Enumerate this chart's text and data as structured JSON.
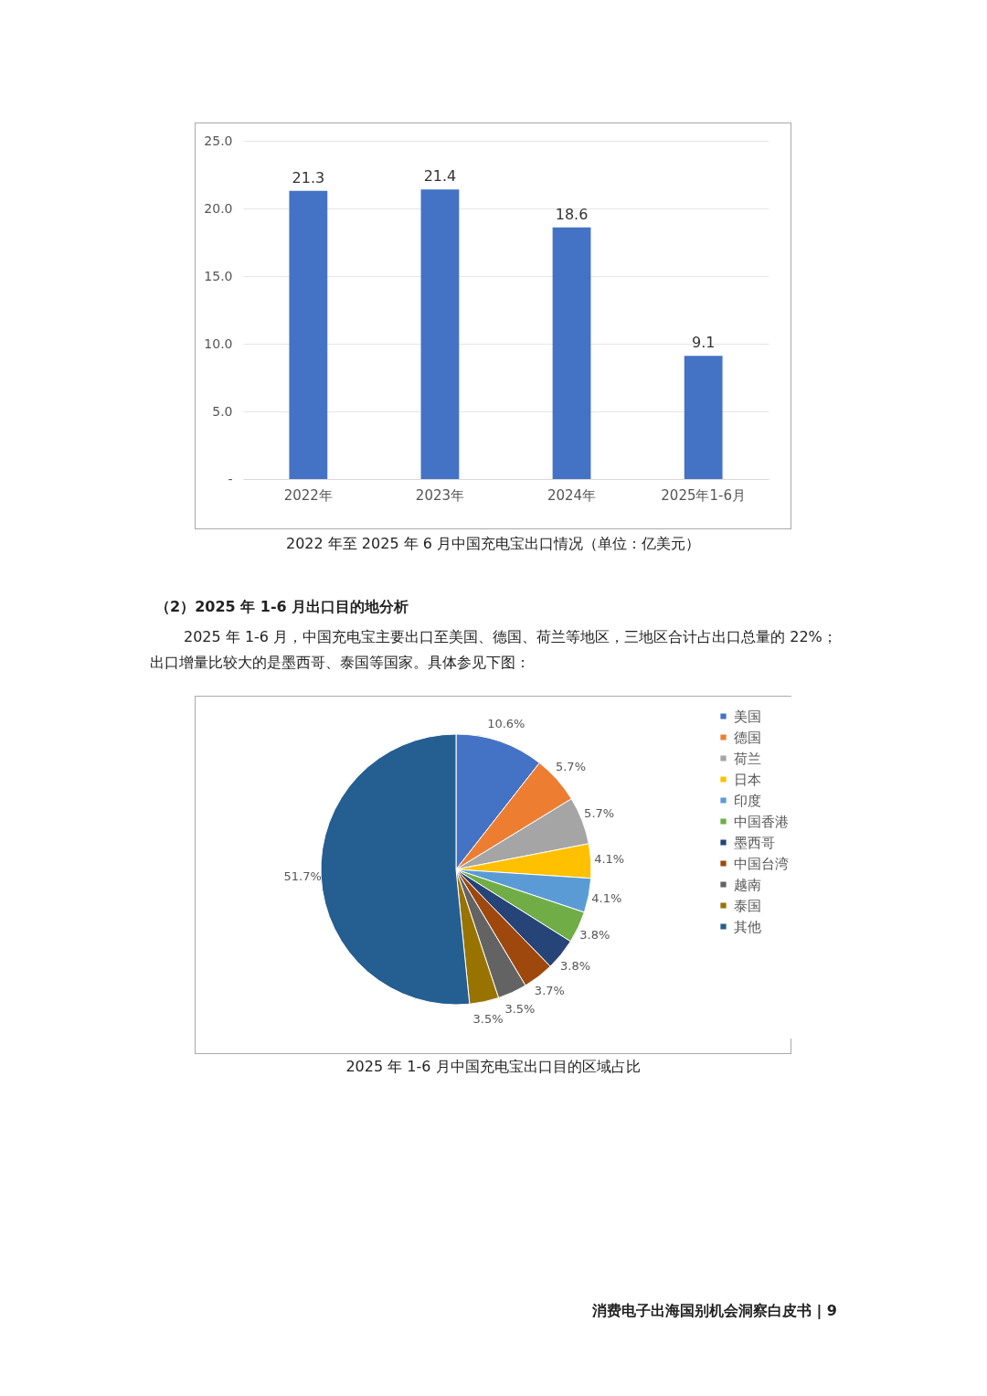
{
  "chart_data": [
    {
      "type": "bar",
      "title": "2022 年至 2025 年 6 月中国充电宝出口情况（单位：亿美元）",
      "categories": [
        "2022年",
        "2023年",
        "2024年",
        "2025年1-6月"
      ],
      "values": [
        21.3,
        21.4,
        18.6,
        9.1
      ],
      "color": "#4472c4",
      "ylim": [
        0,
        25
      ],
      "yticks": [
        {
          "value": 0,
          "label": "-"
        },
        {
          "value": 5,
          "label": "5.0"
        },
        {
          "value": 10,
          "label": "10.0"
        },
        {
          "value": 15,
          "label": "15.0"
        },
        {
          "value": 20,
          "label": "20.0"
        },
        {
          "value": 25,
          "label": "25.0"
        }
      ],
      "grid": "y",
      "data_labels": true
    },
    {
      "type": "pie",
      "title": "2025 年 1-6 月中国充电宝出口目的区域占比",
      "categories": [
        "美国",
        "德国",
        "荷兰",
        "日本",
        "印度",
        "中国香港",
        "墨西哥",
        "中国台湾",
        "越南",
        "泰国",
        "其他"
      ],
      "values": [
        10.6,
        5.7,
        5.7,
        4.1,
        4.1,
        3.8,
        3.8,
        3.7,
        3.5,
        3.5,
        51.7
      ],
      "value_labels": [
        "10.6%",
        "5.7%",
        "5.7%",
        "4.1%",
        "4.1%",
        "3.8%",
        "3.8%",
        "3.7%",
        "3.5%",
        "3.5%",
        "51.7%"
      ],
      "colors": [
        "#4472c4",
        "#ed7d31",
        "#a5a5a5",
        "#ffc000",
        "#5b9bd5",
        "#70ad47",
        "#264478",
        "#9e480e",
        "#636363",
        "#997300",
        "#255e91"
      ],
      "legend": "right",
      "annotations": [
        "（2）2025 年 1-6 月出口目的地分析",
        "2025 年 1-6 月，中国充电宝主要出口至美国、德国、荷兰等地区，三地区合计占出口总量的 22%；出口增量比较大的是墨西哥、泰国等国家。具体参见下图：",
        "消费电子出海国别机会洞察白皮书 | 9"
      ]
    }
  ]
}
